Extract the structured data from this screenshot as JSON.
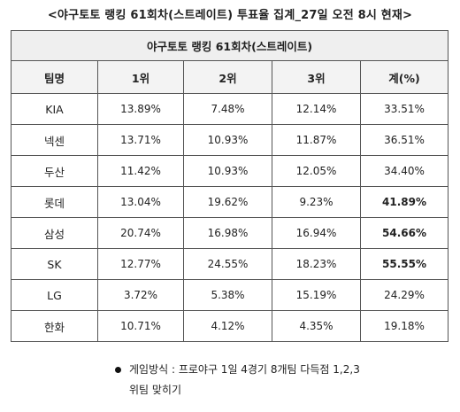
{
  "page_title": "<야구토토 랭킹 61회차(스트레이트) 투표율 집계_27일 오전 8시 현재>",
  "table": {
    "title": "야구토토 랭킹 61회차(스트레이트)",
    "headers": [
      "팀명",
      "1위",
      "2위",
      "3위",
      "계(%)"
    ],
    "rows": [
      {
        "team": "KIA",
        "r1": "13.89%",
        "r2": "7.48%",
        "r3": "12.14%",
        "total": "33.51%",
        "highlight": false
      },
      {
        "team": "넥센",
        "r1": "13.71%",
        "r2": "10.93%",
        "r3": "11.87%",
        "total": "36.51%",
        "highlight": false
      },
      {
        "team": "두산",
        "r1": "11.42%",
        "r2": "10.93%",
        "r3": "12.05%",
        "total": "34.40%",
        "highlight": false
      },
      {
        "team": "롯데",
        "r1": "13.04%",
        "r2": "19.62%",
        "r3": "9.23%",
        "total": "41.89%",
        "highlight": true
      },
      {
        "team": "삼성",
        "r1": "20.74%",
        "r2": "16.98%",
        "r3": "16.94%",
        "total": "54.66%",
        "highlight": true
      },
      {
        "team": "SK",
        "r1": "12.77%",
        "r2": "24.55%",
        "r3": "18.23%",
        "total": "55.55%",
        "highlight": true
      },
      {
        "team": "LG",
        "r1": "3.72%",
        "r2": "5.38%",
        "r3": "15.19%",
        "total": "24.29%",
        "highlight": false
      },
      {
        "team": "한화",
        "r1": "10.71%",
        "r2": "4.12%",
        "r3": "4.35%",
        "total": "19.18%",
        "highlight": false
      }
    ]
  },
  "note": {
    "line1": "게임방식 : 프로야구 1일 4경기 8개팀 다득점 1,2,3",
    "line2": "위팀 맞히기"
  }
}
